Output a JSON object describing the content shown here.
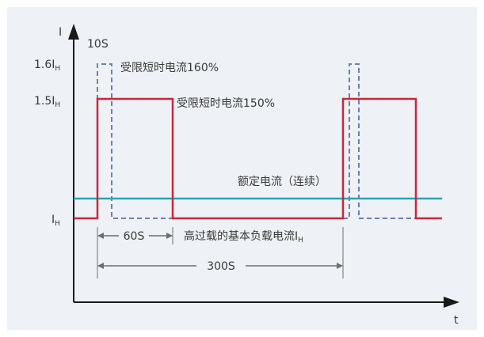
{
  "diagram": {
    "axes": {
      "y_label": "I",
      "x_label": "t",
      "y_ticks": {
        "i_16": {
          "coef": "1.6I",
          "sub": "H"
        },
        "i_15": {
          "coef": "1.5I",
          "sub": "H"
        },
        "i_h": {
          "coef": "I",
          "sub": "H"
        }
      }
    },
    "labels": {
      "ten_s": "10S",
      "limited_160": "受限短时电流160%",
      "limited_150": "受限短时电流150%",
      "rated": "额定电流（连续）",
      "base_load_text": "高过载的基本负载电流I",
      "base_load_sub": "H",
      "sixty_s": "60S",
      "three_hundred_s": "300S"
    },
    "colors": {
      "background": "#ffffff",
      "panel": "#eef1f5",
      "axis": "#1a1a1a",
      "overload_150": "#c8283c",
      "overload_160": "#6a80b6",
      "rated_current": "#2aa3ad",
      "dimension": "#6e6e6e"
    }
  }
}
